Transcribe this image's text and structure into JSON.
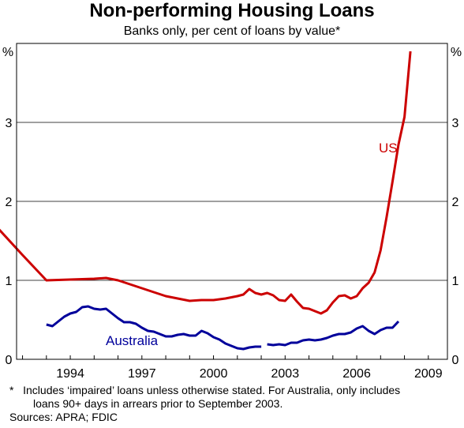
{
  "chart_data": {
    "type": "line",
    "title": "Non-performing Housing Loans",
    "subtitle": "Banks only, per cent of loans by value*",
    "ylabel_left": "%",
    "ylabel_right": "%",
    "ylim": [
      0,
      4
    ],
    "xlim": [
      1991.75,
      2009.8
    ],
    "yticks": [
      0,
      1,
      2,
      3
    ],
    "ytick_labels": [
      "0",
      "1",
      "2",
      "3"
    ],
    "xticks": [
      1994,
      1997,
      2000,
      2003,
      2006,
      2009
    ],
    "xtick_labels": [
      "1994",
      "1997",
      "2000",
      "2003",
      "2006",
      "2009"
    ],
    "grid": true,
    "series": [
      {
        "name": "US",
        "color": "#cc0000",
        "segments": [
          [
            [
              1991.0,
              1.65
            ],
            [
              1992.0,
              1.32
            ],
            [
              1993.0,
              1.0
            ],
            [
              1994.0,
              1.01
            ],
            [
              1995.0,
              1.02
            ],
            [
              1995.5,
              1.03
            ],
            [
              1996.0,
              1.0
            ],
            [
              1996.5,
              0.95
            ],
            [
              1997.0,
              0.9
            ],
            [
              1997.5,
              0.85
            ],
            [
              1998.0,
              0.8
            ],
            [
              1998.5,
              0.77
            ],
            [
              1999.0,
              0.74
            ],
            [
              1999.5,
              0.75
            ],
            [
              2000.0,
              0.75
            ],
            [
              2000.5,
              0.77
            ],
            [
              2001.0,
              0.8
            ],
            [
              2001.25,
              0.82
            ],
            [
              2001.5,
              0.89
            ],
            [
              2001.75,
              0.84
            ],
            [
              2002.0,
              0.82
            ],
            [
              2002.25,
              0.84
            ],
            [
              2002.5,
              0.81
            ],
            [
              2002.75,
              0.75
            ],
            [
              2003.0,
              0.74
            ],
            [
              2003.25,
              0.82
            ],
            [
              2003.5,
              0.73
            ],
            [
              2003.75,
              0.65
            ],
            [
              2004.0,
              0.64
            ],
            [
              2004.25,
              0.61
            ],
            [
              2004.5,
              0.58
            ],
            [
              2004.75,
              0.62
            ],
            [
              2005.0,
              0.72
            ],
            [
              2005.25,
              0.8
            ],
            [
              2005.5,
              0.81
            ],
            [
              2005.75,
              0.77
            ],
            [
              2006.0,
              0.8
            ],
            [
              2006.25,
              0.9
            ],
            [
              2006.5,
              0.97
            ],
            [
              2006.75,
              1.1
            ],
            [
              2007.0,
              1.38
            ],
            [
              2007.25,
              1.8
            ],
            [
              2007.5,
              2.25
            ],
            [
              2007.75,
              2.72
            ],
            [
              2008.0,
              3.07
            ],
            [
              2008.25,
              3.9
            ]
          ]
        ]
      },
      {
        "name": "Australia",
        "color": "#00009b",
        "segments": [
          [
            [
              1993.0,
              0.44
            ],
            [
              1993.25,
              0.42
            ],
            [
              1993.5,
              0.48
            ],
            [
              1993.75,
              0.54
            ],
            [
              1994.0,
              0.58
            ],
            [
              1994.25,
              0.6
            ],
            [
              1994.5,
              0.66
            ],
            [
              1994.75,
              0.67
            ],
            [
              1995.0,
              0.64
            ],
            [
              1995.25,
              0.63
            ],
            [
              1995.5,
              0.64
            ],
            [
              1995.75,
              0.58
            ],
            [
              1996.0,
              0.52
            ],
            [
              1996.25,
              0.47
            ],
            [
              1996.5,
              0.47
            ],
            [
              1996.75,
              0.45
            ],
            [
              1997.0,
              0.4
            ],
            [
              1997.25,
              0.36
            ],
            [
              1997.5,
              0.35
            ],
            [
              1997.75,
              0.32
            ],
            [
              1998.0,
              0.29
            ],
            [
              1998.25,
              0.29
            ],
            [
              1998.5,
              0.31
            ],
            [
              1998.75,
              0.32
            ],
            [
              1999.0,
              0.3
            ],
            [
              1999.25,
              0.3
            ],
            [
              1999.5,
              0.36
            ],
            [
              1999.75,
              0.33
            ],
            [
              2000.0,
              0.28
            ],
            [
              2000.25,
              0.25
            ],
            [
              2000.5,
              0.2
            ],
            [
              2000.75,
              0.17
            ],
            [
              2001.0,
              0.14
            ],
            [
              2001.25,
              0.13
            ],
            [
              2001.5,
              0.15
            ],
            [
              2001.75,
              0.16
            ],
            [
              2002.0,
              0.16
            ]
          ],
          [
            [
              2002.25,
              0.19
            ],
            [
              2002.5,
              0.18
            ],
            [
              2002.75,
              0.19
            ],
            [
              2003.0,
              0.18
            ],
            [
              2003.25,
              0.21
            ],
            [
              2003.5,
              0.21
            ],
            [
              2003.75,
              0.24
            ],
            [
              2004.0,
              0.25
            ],
            [
              2004.25,
              0.24
            ],
            [
              2004.5,
              0.25
            ],
            [
              2004.75,
              0.27
            ],
            [
              2005.0,
              0.3
            ],
            [
              2005.25,
              0.32
            ],
            [
              2005.5,
              0.32
            ],
            [
              2005.75,
              0.34
            ],
            [
              2006.0,
              0.39
            ],
            [
              2006.25,
              0.42
            ],
            [
              2006.5,
              0.36
            ],
            [
              2006.75,
              0.32
            ],
            [
              2007.0,
              0.37
            ],
            [
              2007.25,
              0.4
            ],
            [
              2007.5,
              0.4
            ],
            [
              2007.75,
              0.48
            ]
          ]
        ]
      }
    ]
  },
  "footnote": {
    "marker": "*",
    "line1": "Includes ‘impaired’ loans unless otherwise stated. For Australia, only includes",
    "line2": "loans 90+ days in arrears prior to September 2003.",
    "sources": "Sources: APRA; FDIC"
  }
}
